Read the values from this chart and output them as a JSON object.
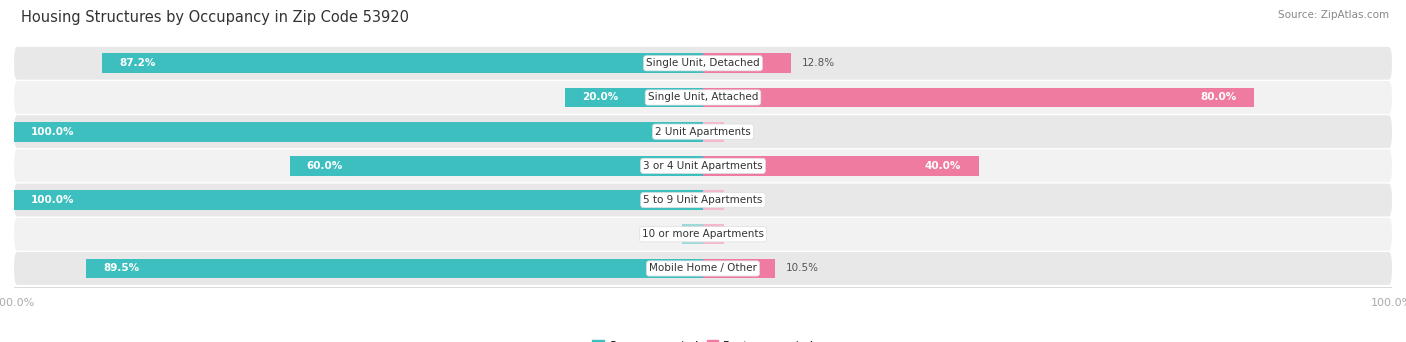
{
  "title": "Housing Structures by Occupancy in Zip Code 53920",
  "source": "Source: ZipAtlas.com",
  "categories": [
    "Single Unit, Detached",
    "Single Unit, Attached",
    "2 Unit Apartments",
    "3 or 4 Unit Apartments",
    "5 to 9 Unit Apartments",
    "10 or more Apartments",
    "Mobile Home / Other"
  ],
  "owner_pct": [
    87.2,
    20.0,
    100.0,
    60.0,
    100.0,
    0.0,
    89.5
  ],
  "renter_pct": [
    12.8,
    80.0,
    0.0,
    40.0,
    0.0,
    0.0,
    10.5
  ],
  "owner_color": "#3DBFBF",
  "renter_color": "#F07BA0",
  "owner_color_light": "#9ED8D8",
  "renter_color_light": "#F5B8CC",
  "row_bg_dark": "#E8E8E8",
  "row_bg_light": "#F2F2F2",
  "figsize": [
    14.06,
    3.42
  ],
  "title_fontsize": 10.5,
  "source_fontsize": 7.5,
  "label_fontsize": 7.5,
  "category_fontsize": 7.5,
  "bar_height": 0.58,
  "xlim": 100,
  "title_color": "#333333",
  "source_color": "#888888",
  "label_color_dark": "#555555",
  "label_color_white": "#FFFFFF",
  "x_tick_color": "#AAAAAA"
}
